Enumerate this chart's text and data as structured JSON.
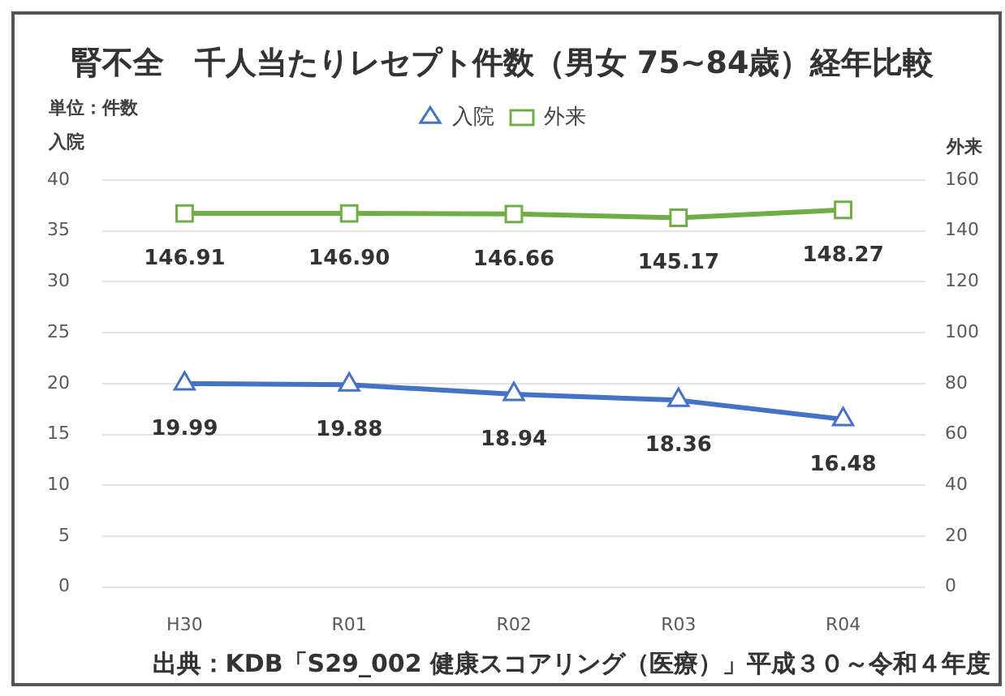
{
  "chart_data": {
    "type": "line",
    "title": "腎不全　千人当たりレセプト件数（男女 75~84歳）経年比較",
    "ylabel": "入院",
    "y2label": "外来",
    "annotations": [
      "単位：件数",
      "出典：KDB「S29_002 健康スコアリング（医療）」平成３０～令和４年度"
    ],
    "categories": [
      "H30",
      "R01",
      "R02",
      "R03",
      "R04"
    ],
    "series": [
      {
        "name": "入院",
        "color": "#4472c4",
        "values": [
          19.99,
          19.88,
          18.94,
          18.36,
          16.48
        ],
        "value_labels": [
          "19.99",
          "19.88",
          "18.94",
          "18.36",
          "16.48"
        ],
        "marker": "triangle",
        "axis": "y"
      },
      {
        "name": "外来",
        "color": "#70ad47",
        "values": [
          146.91,
          146.9,
          146.66,
          145.17,
          148.27
        ],
        "value_labels": [
          "146.91",
          "146.90",
          "146.66",
          "145.17",
          "148.27"
        ],
        "marker": "square",
        "axis": "y2"
      }
    ],
    "ylim": [
      0,
      40
    ],
    "yticks": [
      0,
      5,
      10,
      15,
      20,
      25,
      30,
      35,
      40
    ],
    "y2lim": [
      0,
      160
    ],
    "y2ticks": [
      0,
      20,
      40,
      60,
      80,
      100,
      120,
      140,
      160
    ],
    "grid": "y",
    "legend": "top",
    "line_style": "solid"
  }
}
